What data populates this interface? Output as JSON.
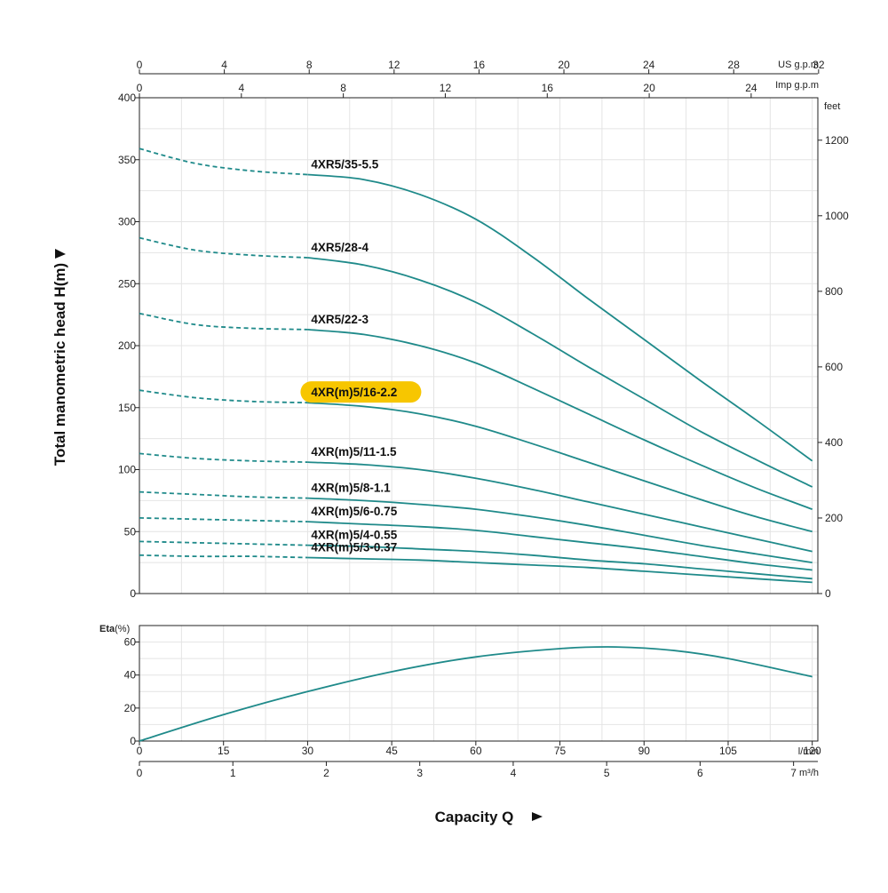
{
  "chart_data": {
    "type": "line",
    "colors": {
      "curve": "#1f8a8a",
      "highlight": "#f7c600",
      "grid": "#e4e4e4"
    },
    "axes": {
      "head_ylabel": "Total manometric head H(m)",
      "head_ylim": [
        0,
        400
      ],
      "head_yticks": [
        "0",
        "50",
        "100",
        "150",
        "200",
        "250",
        "300",
        "350",
        "400"
      ],
      "feet_unit": "feet",
      "feet_ticks": [
        "0",
        "200",
        "400",
        "600",
        "800",
        "1000",
        "1200"
      ],
      "feet_values": [
        0,
        200,
        400,
        600,
        800,
        1000,
        1200
      ],
      "us_gpm_unit": "US g.p.m",
      "us_gpm_ticks": [
        "0",
        "4",
        "8",
        "12",
        "16",
        "20",
        "24",
        "28",
        "32"
      ],
      "us_gpm_values": [
        0,
        4,
        8,
        12,
        16,
        20,
        24,
        28,
        32
      ],
      "imp_gpm_unit": "Imp g.p.m",
      "imp_gpm_ticks": [
        "0",
        "4",
        "8",
        "12",
        "16",
        "20",
        "24"
      ],
      "imp_gpm_values": [
        0,
        4,
        8,
        12,
        16,
        20,
        24
      ],
      "lmin_unit": "l/min",
      "lmin_ticks": [
        "0",
        "15",
        "30",
        "45",
        "60",
        "75",
        "90",
        "105",
        "120"
      ],
      "lmin_values": [
        0,
        15,
        30,
        45,
        60,
        75,
        90,
        105,
        120
      ],
      "m3h_unit": "m³/h",
      "m3h_ticks": [
        "0",
        "1",
        "2",
        "3",
        "4",
        "5",
        "6",
        "7"
      ],
      "m3h_values": [
        0,
        1,
        2,
        3,
        4,
        5,
        6,
        7
      ],
      "xlabel": "Capacity Q",
      "eta_ylabel": "Eta",
      "eta_unit": "(%)",
      "eta_ylim": [
        0,
        70
      ],
      "eta_yticks": [
        "0",
        "20",
        "40",
        "60"
      ],
      "eta_values": [
        0,
        20,
        40,
        60
      ]
    },
    "series": [
      {
        "name": "4XR5/35-5.5",
        "highlight": false,
        "dashed": [
          [
            0,
            359
          ],
          [
            10,
            347
          ],
          [
            20,
            341
          ],
          [
            30,
            338
          ]
        ],
        "solid": [
          [
            30,
            338
          ],
          [
            40,
            334
          ],
          [
            50,
            322
          ],
          [
            60,
            302
          ],
          [
            70,
            272
          ],
          [
            80,
            238
          ],
          [
            90,
            205
          ],
          [
            100,
            172
          ],
          [
            110,
            140
          ],
          [
            120,
            107
          ]
        ]
      },
      {
        "name": "4XR5/28-4",
        "highlight": false,
        "dashed": [
          [
            0,
            287
          ],
          [
            10,
            277
          ],
          [
            20,
            273
          ],
          [
            30,
            271
          ]
        ],
        "solid": [
          [
            30,
            271
          ],
          [
            40,
            265
          ],
          [
            50,
            253
          ],
          [
            60,
            235
          ],
          [
            70,
            210
          ],
          [
            80,
            183
          ],
          [
            90,
            157
          ],
          [
            100,
            131
          ],
          [
            110,
            108
          ],
          [
            120,
            86
          ]
        ]
      },
      {
        "name": "4XR5/22-3",
        "highlight": false,
        "dashed": [
          [
            0,
            226
          ],
          [
            10,
            217
          ],
          [
            20,
            214
          ],
          [
            30,
            213
          ]
        ],
        "solid": [
          [
            30,
            213
          ],
          [
            40,
            209
          ],
          [
            50,
            200
          ],
          [
            60,
            186
          ],
          [
            70,
            166
          ],
          [
            80,
            145
          ],
          [
            90,
            124
          ],
          [
            100,
            104
          ],
          [
            110,
            85
          ],
          [
            120,
            68
          ]
        ]
      },
      {
        "name": "4XR(m)5/16-2.2",
        "highlight": true,
        "dashed": [
          [
            0,
            164
          ],
          [
            10,
            158
          ],
          [
            20,
            155
          ],
          [
            30,
            154
          ]
        ],
        "solid": [
          [
            30,
            154
          ],
          [
            40,
            151
          ],
          [
            50,
            145
          ],
          [
            60,
            135
          ],
          [
            70,
            121
          ],
          [
            80,
            106
          ],
          [
            90,
            91
          ],
          [
            100,
            76
          ],
          [
            110,
            62
          ],
          [
            120,
            50
          ]
        ]
      },
      {
        "name": "4XR(m)5/11-1.5",
        "highlight": false,
        "dashed": [
          [
            0,
            113
          ],
          [
            10,
            109
          ],
          [
            20,
            107
          ],
          [
            30,
            106
          ]
        ],
        "solid": [
          [
            30,
            106
          ],
          [
            40,
            104
          ],
          [
            50,
            100
          ],
          [
            60,
            93
          ],
          [
            70,
            84
          ],
          [
            80,
            74
          ],
          [
            90,
            64
          ],
          [
            100,
            54
          ],
          [
            110,
            44
          ],
          [
            120,
            34
          ]
        ]
      },
      {
        "name": "4XR(m)5/8-1.1",
        "highlight": false,
        "dashed": [
          [
            0,
            82
          ],
          [
            10,
            80
          ],
          [
            20,
            78
          ],
          [
            30,
            77
          ]
        ],
        "solid": [
          [
            30,
            77
          ],
          [
            40,
            75
          ],
          [
            50,
            72
          ],
          [
            60,
            68
          ],
          [
            70,
            62
          ],
          [
            80,
            55
          ],
          [
            90,
            47
          ],
          [
            100,
            39
          ],
          [
            110,
            32
          ],
          [
            120,
            25
          ]
        ]
      },
      {
        "name": "4XR(m)5/6-0.75",
        "highlight": false,
        "dashed": [
          [
            0,
            61
          ],
          [
            10,
            60
          ],
          [
            20,
            59
          ],
          [
            30,
            58
          ]
        ],
        "solid": [
          [
            30,
            58
          ],
          [
            40,
            56
          ],
          [
            50,
            54
          ],
          [
            60,
            51
          ],
          [
            70,
            46
          ],
          [
            80,
            41
          ],
          [
            90,
            36
          ],
          [
            100,
            30
          ],
          [
            110,
            24
          ],
          [
            120,
            19
          ]
        ]
      },
      {
        "name": "4XR(m)5/4-0.55",
        "highlight": false,
        "dashed": [
          [
            0,
            42
          ],
          [
            10,
            41
          ],
          [
            20,
            40
          ],
          [
            30,
            39
          ]
        ],
        "solid": [
          [
            30,
            39
          ],
          [
            40,
            38
          ],
          [
            50,
            36
          ],
          [
            60,
            34
          ],
          [
            70,
            31
          ],
          [
            80,
            27
          ],
          [
            90,
            24
          ],
          [
            100,
            20
          ],
          [
            110,
            16
          ],
          [
            120,
            12
          ]
        ]
      },
      {
        "name": "4XR(m)5/3-0.37",
        "highlight": false,
        "dashed": [
          [
            0,
            31
          ],
          [
            10,
            30
          ],
          [
            20,
            30
          ],
          [
            30,
            29
          ]
        ],
        "solid": [
          [
            30,
            29
          ],
          [
            40,
            28
          ],
          [
            50,
            27
          ],
          [
            60,
            25
          ],
          [
            70,
            23
          ],
          [
            80,
            21
          ],
          [
            90,
            18
          ],
          [
            100,
            15
          ],
          [
            110,
            12
          ],
          [
            120,
            9
          ]
        ]
      }
    ],
    "efficiency": {
      "x": [
        0,
        15,
        30,
        45,
        60,
        75,
        85,
        95,
        105,
        120
      ],
      "y": [
        0,
        16,
        30,
        42,
        51,
        56,
        57,
        55,
        50,
        39
      ]
    }
  }
}
